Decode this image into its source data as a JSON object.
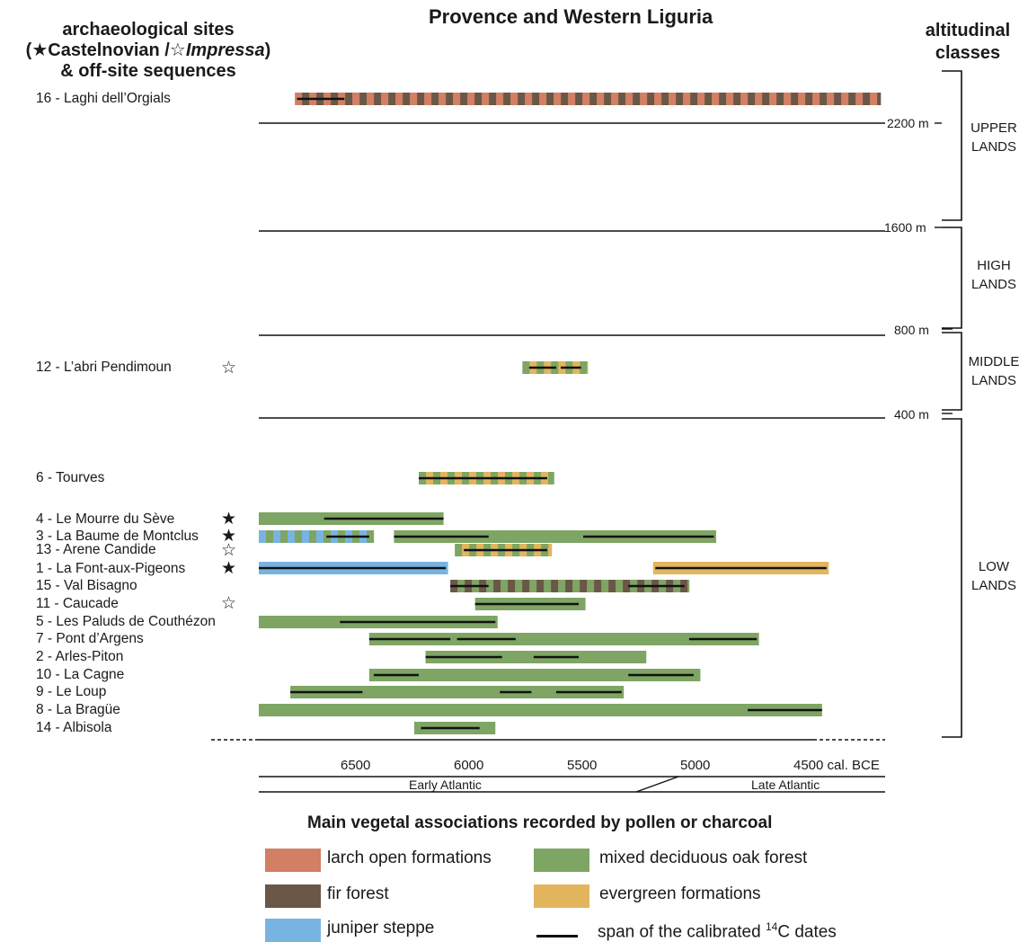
{
  "title": "Provence and Western Liguria",
  "sites_header": {
    "line1": "archaeological sites",
    "line2_open": "(",
    "castel_star": "★",
    "castel_label": "Castelnovian /",
    "impressa_star": "☆",
    "impressa_label": "Impressa",
    "line2_close": ")",
    "line3": "& off-site sequences"
  },
  "altitude_header": {
    "line1": "altitudinal",
    "line2": "classes"
  },
  "altitude_lines": [
    "2200 m",
    "1600 m",
    "800 m",
    "400 m"
  ],
  "altitude_classes": [
    {
      "line1": "UPPER",
      "line2": "LANDS"
    },
    {
      "line1": "HIGH",
      "line2": "LANDS"
    },
    {
      "line1": "MIDDLE",
      "line2": "LANDS"
    },
    {
      "line1": "LOW",
      "line2": "LANDS"
    }
  ],
  "colors": {
    "larch": "#d27f63",
    "fir": "#6a5747",
    "juniper": "#78b4e2",
    "oak": "#7ea563",
    "evergreen": "#e3b55e",
    "line": "#111111"
  },
  "markers": {
    "castelnovian": "★",
    "impressa": "☆"
  },
  "chart_data": {
    "type": "bar",
    "title": "Provence and Western Liguria",
    "x_axis": {
      "ticks": [
        6500,
        6000,
        5500,
        5000,
        4500
      ],
      "tick_labels": [
        "6500",
        "6000",
        "5500",
        "5000",
        "4500 cal. BCE"
      ],
      "range": [
        6940,
        4260
      ],
      "reversed": true,
      "unit": "cal. BCE"
    },
    "periods": [
      {
        "name": "Early Atlantic"
      },
      {
        "name": "Late Atlantic"
      }
    ],
    "sites": [
      {
        "label": "16 - Laghi dell’Orgials",
        "marker": "",
        "altitude_class": "UPPER LANDS",
        "segments": [
          {
            "from": 6780,
            "to": 4180,
            "pattern": [
              "larch",
              "fir"
            ]
          }
        ],
        "dates": [
          [
            6770,
            6560
          ]
        ]
      },
      {
        "label": "12 - L’abri Pendimoun",
        "marker": "impressa",
        "altitude_class": "MIDDLE LANDS",
        "segments": [
          {
            "from": 5770,
            "to": 5480,
            "pattern": [
              "oak",
              "evergreen"
            ]
          }
        ],
        "dates": [
          [
            5740,
            5620
          ],
          [
            5600,
            5510
          ]
        ]
      },
      {
        "label": "6 - Tourves",
        "marker": "",
        "altitude_class": "LOW LANDS",
        "segments": [
          {
            "from": 6230,
            "to": 5630,
            "pattern": [
              "oak",
              "evergreen"
            ]
          }
        ],
        "dates": [
          [
            6230,
            5660
          ]
        ]
      },
      {
        "label": "4 - Le Mourre du Sève",
        "marker": "castelnovian",
        "altitude_class": "LOW LANDS",
        "segments": [
          {
            "from": 6940,
            "to": 6120,
            "pattern": [
              "oak"
            ]
          }
        ],
        "dates": [
          [
            6650,
            6120
          ]
        ]
      },
      {
        "label": "3 - La Baume de Montclus",
        "marker": "castelnovian",
        "altitude_class": "LOW LANDS",
        "segments": [
          {
            "from": 6940,
            "to": 6430,
            "pattern": [
              "juniper",
              "oak"
            ]
          },
          {
            "from": 6340,
            "to": 4910,
            "pattern": [
              "oak"
            ]
          }
        ],
        "dates": [
          [
            6640,
            6450
          ],
          [
            6340,
            5920
          ],
          [
            5500,
            4920
          ]
        ]
      },
      {
        "label": "13 - Arene Candide",
        "marker": "impressa",
        "altitude_class": "LOW LANDS",
        "segments": [
          {
            "from": 6070,
            "to": 5640,
            "pattern": [
              "oak",
              "evergreen"
            ]
          }
        ],
        "dates": [
          [
            6030,
            5660
          ]
        ]
      },
      {
        "label": "1 - La Font-aux-Pigeons",
        "marker": "castelnovian",
        "altitude_class": "LOW LANDS",
        "segments": [
          {
            "from": 6940,
            "to": 6100,
            "pattern": [
              "juniper"
            ]
          },
          {
            "from": 5190,
            "to": 4410,
            "pattern": [
              "evergreen"
            ]
          }
        ],
        "dates": [
          [
            6940,
            6110
          ],
          [
            5180,
            4420
          ]
        ]
      },
      {
        "label": "15 - Val Bisagno",
        "marker": "",
        "altitude_class": "LOW LANDS",
        "segments": [
          {
            "from": 6090,
            "to": 5030,
            "pattern": [
              "fir",
              "oak"
            ]
          }
        ],
        "dates": [
          [
            6090,
            5920
          ],
          [
            5300,
            5050
          ]
        ]
      },
      {
        "label": "11 - Caucade",
        "marker": "impressa",
        "altitude_class": "LOW LANDS",
        "segments": [
          {
            "from": 5980,
            "to": 5490,
            "pattern": [
              "oak"
            ]
          }
        ],
        "dates": [
          [
            5980,
            5520
          ]
        ]
      },
      {
        "label": "5 - Les Paluds de Couthézon",
        "marker": "",
        "altitude_class": "LOW LANDS",
        "segments": [
          {
            "from": 6940,
            "to": 5880,
            "pattern": [
              "oak"
            ]
          }
        ],
        "dates": [
          [
            6580,
            5890
          ]
        ]
      },
      {
        "label": "7 - Pont d’Argens",
        "marker": "",
        "altitude_class": "LOW LANDS",
        "segments": [
          {
            "from": 6450,
            "to": 4720,
            "pattern": [
              "oak"
            ]
          }
        ],
        "dates": [
          [
            6450,
            6090
          ],
          [
            6060,
            5800
          ],
          [
            5030,
            4730
          ]
        ]
      },
      {
        "label": "2 - Arles-Piton",
        "marker": "",
        "altitude_class": "LOW LANDS",
        "segments": [
          {
            "from": 6200,
            "to": 5220,
            "pattern": [
              "oak"
            ]
          }
        ],
        "dates": [
          [
            6200,
            5860
          ],
          [
            5720,
            5520
          ]
        ]
      },
      {
        "label": "10 - La Cagne",
        "marker": "",
        "altitude_class": "LOW LANDS",
        "segments": [
          {
            "from": 6450,
            "to": 4980,
            "pattern": [
              "oak"
            ]
          }
        ],
        "dates": [
          [
            6430,
            6230
          ],
          [
            5300,
            5010
          ]
        ]
      },
      {
        "label": "9 - Le Loup",
        "marker": "",
        "altitude_class": "LOW LANDS",
        "segments": [
          {
            "from": 6800,
            "to": 5320,
            "pattern": [
              "oak"
            ]
          }
        ],
        "dates": [
          [
            6800,
            6480
          ],
          [
            5870,
            5730
          ],
          [
            5620,
            5330
          ]
        ]
      },
      {
        "label": "8 - La Bragüe",
        "marker": "",
        "altitude_class": "LOW LANDS",
        "segments": [
          {
            "from": 6940,
            "to": 4440,
            "pattern": [
              "oak"
            ]
          }
        ],
        "dates": [
          [
            4770,
            4440
          ]
        ]
      },
      {
        "label": "14 - Albisola",
        "marker": "",
        "altitude_class": "LOW LANDS",
        "segments": [
          {
            "from": 6250,
            "to": 5890,
            "pattern": [
              "oak"
            ]
          }
        ],
        "dates": [
          [
            6220,
            5960
          ]
        ]
      }
    ]
  },
  "legend": {
    "title": "Main vegetal associations recorded by pollen or charcoal",
    "items": [
      {
        "key": "larch",
        "label": "larch open formations"
      },
      {
        "key": "oak",
        "label": "mixed deciduous oak forest"
      },
      {
        "key": "fir",
        "label": "fir forest"
      },
      {
        "key": "evergreen",
        "label": "evergreen formations"
      },
      {
        "key": "juniper",
        "label": "juniper steppe"
      }
    ],
    "dates_label_pre": "span of the calibrated ",
    "dates_label_sup": "14",
    "dates_label_post": "C dates"
  }
}
